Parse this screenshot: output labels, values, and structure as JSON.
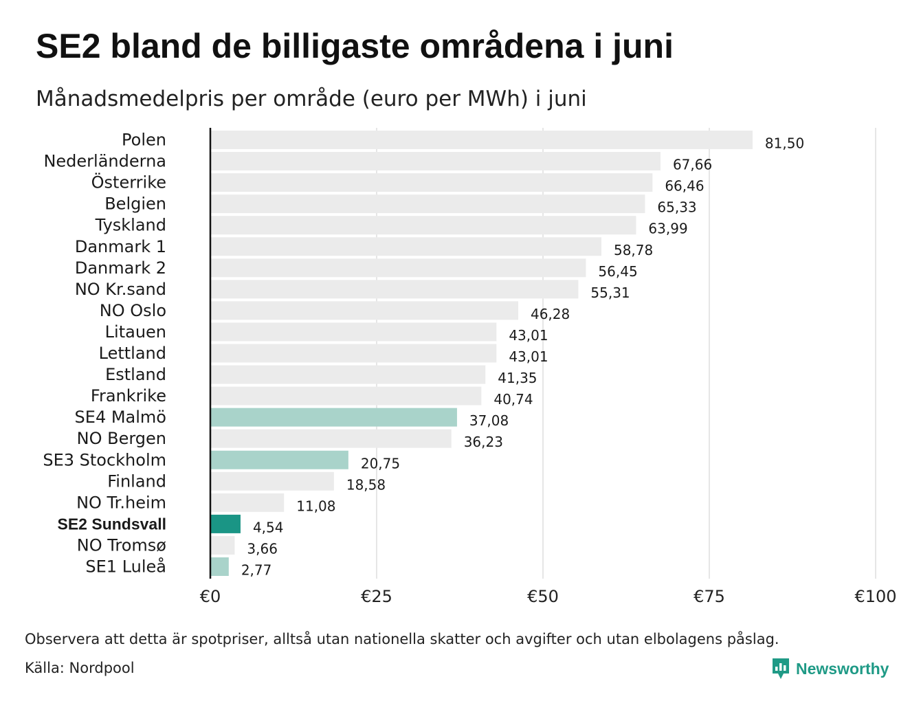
{
  "title": "SE2 bland de billigaste områdena i juni",
  "subtitle": "Månadsmedelpris per område (euro per MWh) i juni",
  "note": "Observera att detta är spotpriser, alltså utan nationella skatter och avgifter och utan elbolagens påslag.",
  "source": "Källa: Nordpool",
  "brand": {
    "name": "Newsworthy",
    "icon": "bar-chart-badge-icon",
    "color": "#1f9a86"
  },
  "colors": {
    "default": "#ebebeb",
    "swedish": "#a9d3ca",
    "highlight": "#1a9585",
    "axis": "#111111",
    "grid": "#cccccc"
  },
  "chart_data": {
    "type": "bar",
    "orientation": "horizontal",
    "title": "SE2 bland de billigaste områdena i juni",
    "subtitle": "Månadsmedelpris per område (euro per MWh) i juni",
    "xlim": [
      0,
      100
    ],
    "ticks": [
      0,
      25,
      50,
      75,
      100
    ],
    "tick_labels": [
      "€0",
      "€25",
      "€50",
      "€75",
      "€100"
    ],
    "grid": "vertical",
    "categories": [
      "Polen",
      "Nederländerna",
      "Österrike",
      "Belgien",
      "Tyskland",
      "Danmark  1",
      "Danmark  2",
      "NO Kr.sand",
      "NO Oslo",
      "Litauen",
      "Lettland",
      "Estland",
      "Frankrike",
      "SE4  Malmö",
      "NO Bergen",
      "SE3  Stockholm",
      "Finland",
      "NO Tr.heim",
      "SE2 Sundsvall",
      "NO Tromsø",
      "SE1  Luleå"
    ],
    "values": [
      81.5,
      67.66,
      66.46,
      65.33,
      63.99,
      58.78,
      56.45,
      55.31,
      46.28,
      43.01,
      43.01,
      41.35,
      40.74,
      37.08,
      36.23,
      20.75,
      18.58,
      11.08,
      4.54,
      3.66,
      2.77
    ],
    "value_labels": [
      "81,50",
      "67,66",
      "66,46",
      "65,33",
      "63,99",
      "58,78",
      "56,45",
      "55,31",
      "46,28",
      "43,01",
      "43,01",
      "41,35",
      "40,74",
      "37,08",
      "36,23",
      "20,75",
      "18,58",
      "11,08",
      "4,54",
      "3,66",
      "2,77"
    ],
    "groups": [
      "default",
      "default",
      "default",
      "default",
      "default",
      "default",
      "default",
      "default",
      "default",
      "default",
      "default",
      "default",
      "default",
      "swedish",
      "default",
      "swedish",
      "default",
      "default",
      "highlight",
      "default",
      "swedish"
    ],
    "highlight": "SE2 Sundsvall"
  }
}
